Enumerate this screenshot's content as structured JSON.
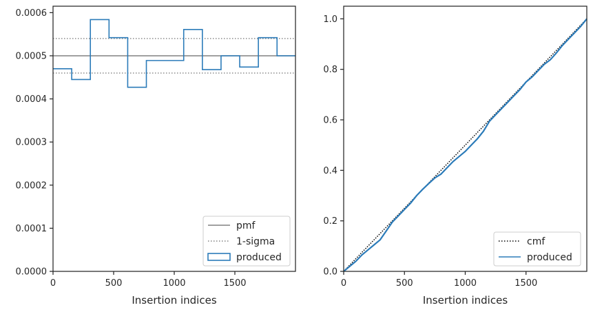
{
  "chart_data": [
    {
      "type": "step-histogram",
      "xlabel": "Insertion indices",
      "ylabel": "",
      "xlim": [
        0,
        2000
      ],
      "ylim": [
        0,
        0.000615
      ],
      "x_ticks": [
        {
          "value": 0,
          "label": "0"
        },
        {
          "value": 500,
          "label": "500"
        },
        {
          "value": 1000,
          "label": "1000"
        },
        {
          "value": 1500,
          "label": "1500"
        }
      ],
      "y_ticks": [
        {
          "value": 0,
          "label": "0.0000"
        },
        {
          "value": 0.0001,
          "label": "0.0001"
        },
        {
          "value": 0.0002,
          "label": "0.0002"
        },
        {
          "value": 0.0003,
          "label": "0.0003"
        },
        {
          "value": 0.0004,
          "label": "0.0004"
        },
        {
          "value": 0.0005,
          "label": "0.0005"
        },
        {
          "value": 0.0006,
          "label": "0.0006"
        }
      ],
      "grid": false,
      "legend_position": "lower-right",
      "series": [
        {
          "name": "pmf",
          "kind": "hline",
          "y": 0.0005,
          "color": "#808080",
          "style": "solid"
        },
        {
          "name": "1-sigma",
          "kind": "hlines",
          "y": [
            0.00054,
            0.00046
          ],
          "color": "#808080",
          "style": "dotted"
        },
        {
          "name": "produced",
          "kind": "step",
          "color": "#2b7bb9",
          "bin_edges": [
            0,
            154,
            308,
            462,
            616,
            770,
            924,
            1078,
            1232,
            1386,
            1540,
            1694,
            1848,
            2000
          ],
          "values": [
            0.00047,
            0.000445,
            0.000584,
            0.000542,
            0.000427,
            0.000489,
            0.000489,
            0.000561,
            0.000468,
            0.0005,
            0.000474,
            0.000542,
            0.0005
          ]
        }
      ]
    },
    {
      "type": "line",
      "xlabel": "Insertion indices",
      "ylabel": "",
      "xlim": [
        0,
        2000
      ],
      "ylim": [
        0,
        1.05
      ],
      "x_ticks": [
        {
          "value": 0,
          "label": "0"
        },
        {
          "value": 500,
          "label": "500"
        },
        {
          "value": 1000,
          "label": "1000"
        },
        {
          "value": 1500,
          "label": "1500"
        }
      ],
      "y_ticks": [
        {
          "value": 0,
          "label": "0.0"
        },
        {
          "value": 0.2,
          "label": "0.2"
        },
        {
          "value": 0.4,
          "label": "0.4"
        },
        {
          "value": 0.6,
          "label": "0.6"
        },
        {
          "value": 0.8,
          "label": "0.8"
        },
        {
          "value": 1.0,
          "label": "1.0"
        }
      ],
      "grid": false,
      "legend_position": "lower-right",
      "series": [
        {
          "name": "cmf",
          "kind": "line",
          "color": "#000000",
          "style": "dotted",
          "x": [
            0,
            2000
          ],
          "y": [
            0,
            1.0
          ]
        },
        {
          "name": "produced",
          "kind": "line",
          "color": "#2b7bb9",
          "style": "solid",
          "x": [
            0,
            50,
            100,
            150,
            200,
            250,
            300,
            350,
            400,
            450,
            500,
            550,
            600,
            650,
            700,
            750,
            800,
            850,
            900,
            950,
            1000,
            1050,
            1100,
            1150,
            1200,
            1250,
            1300,
            1350,
            1400,
            1450,
            1500,
            1550,
            1600,
            1650,
            1700,
            1750,
            1800,
            1850,
            1900,
            1950,
            2000
          ],
          "y": [
            0,
            0.02,
            0.04,
            0.065,
            0.085,
            0.105,
            0.125,
            0.16,
            0.195,
            0.22,
            0.245,
            0.27,
            0.3,
            0.325,
            0.348,
            0.37,
            0.385,
            0.41,
            0.435,
            0.455,
            0.475,
            0.5,
            0.525,
            0.555,
            0.595,
            0.62,
            0.645,
            0.67,
            0.695,
            0.72,
            0.75,
            0.77,
            0.795,
            0.82,
            0.838,
            0.865,
            0.895,
            0.92,
            0.945,
            0.97,
            1.0
          ]
        }
      ]
    }
  ]
}
